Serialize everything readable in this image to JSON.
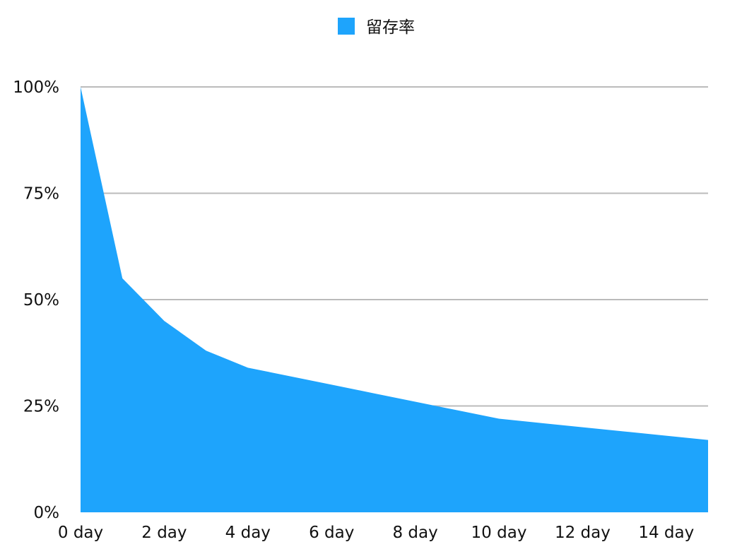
{
  "chart_data": {
    "type": "area",
    "series": [
      {
        "name": "留存率",
        "color": "#1ea4fc",
        "x": [
          0,
          1,
          2,
          3,
          4,
          5,
          6,
          7,
          8,
          9,
          10,
          11,
          12,
          13,
          14,
          15
        ],
        "values": [
          100,
          55,
          45,
          38,
          34,
          32,
          30,
          28,
          26,
          24,
          22,
          21,
          20,
          19,
          18,
          17
        ]
      }
    ],
    "xticks": [
      {
        "value": 0,
        "label": "0 day"
      },
      {
        "value": 2,
        "label": "2 day"
      },
      {
        "value": 4,
        "label": "4 day"
      },
      {
        "value": 6,
        "label": "6 day"
      },
      {
        "value": 8,
        "label": "8 day"
      },
      {
        "value": 10,
        "label": "10 day"
      },
      {
        "value": 12,
        "label": "12 day"
      },
      {
        "value": 14,
        "label": "14 day"
      }
    ],
    "yticks": [
      {
        "value": 0,
        "label": "0%"
      },
      {
        "value": 25,
        "label": "25%"
      },
      {
        "value": 50,
        "label": "50%"
      },
      {
        "value": 75,
        "label": "75%"
      },
      {
        "value": 100,
        "label": "100%"
      }
    ],
    "xlim": [
      0,
      15
    ],
    "ylim": [
      0,
      100
    ],
    "grid": true,
    "legend_position": "top-center",
    "gridline_color": "#bbbbbb"
  }
}
